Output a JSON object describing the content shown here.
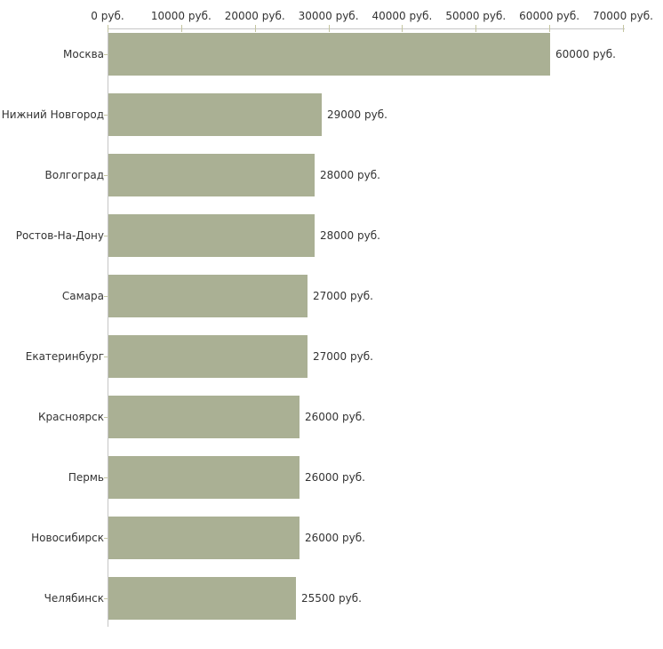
{
  "chart_data": {
    "type": "bar",
    "orientation": "horizontal",
    "title": "",
    "categories": [
      "Москва",
      "Нижний Новгород",
      "Волгоград",
      "Ростов-На-Дону",
      "Самара",
      "Екатеринбург",
      "Красноярск",
      "Пермь",
      "Новосибирск",
      "Челябинск"
    ],
    "values": [
      60000,
      29000,
      28000,
      28000,
      27000,
      27000,
      26000,
      26000,
      26000,
      25500
    ],
    "value_labels": [
      "60000 руб.",
      "29000 руб.",
      "28000 руб.",
      "28000 руб.",
      "27000 руб.",
      "27000 руб.",
      "26000 руб.",
      "26000 руб.",
      "26000 руб.",
      "25500 руб."
    ],
    "unit": "руб.",
    "x_axis": {
      "position": "top",
      "xlim": [
        0,
        70000
      ],
      "ticks": [
        0,
        10000,
        20000,
        30000,
        40000,
        50000,
        60000,
        70000
      ],
      "tick_labels": [
        "0 руб.",
        "10000 руб.",
        "20000 руб.",
        "30000 руб.",
        "40000 руб.",
        "50000 руб.",
        "60000 руб.",
        "70000 руб."
      ]
    },
    "grid": false,
    "legend": false,
    "colors": {
      "bar_fill": "#aab094",
      "axis_line": "#c6c6c6",
      "tick_mark": "#c4c5a0",
      "label_text": "#333333",
      "background": "#ffffff"
    }
  }
}
